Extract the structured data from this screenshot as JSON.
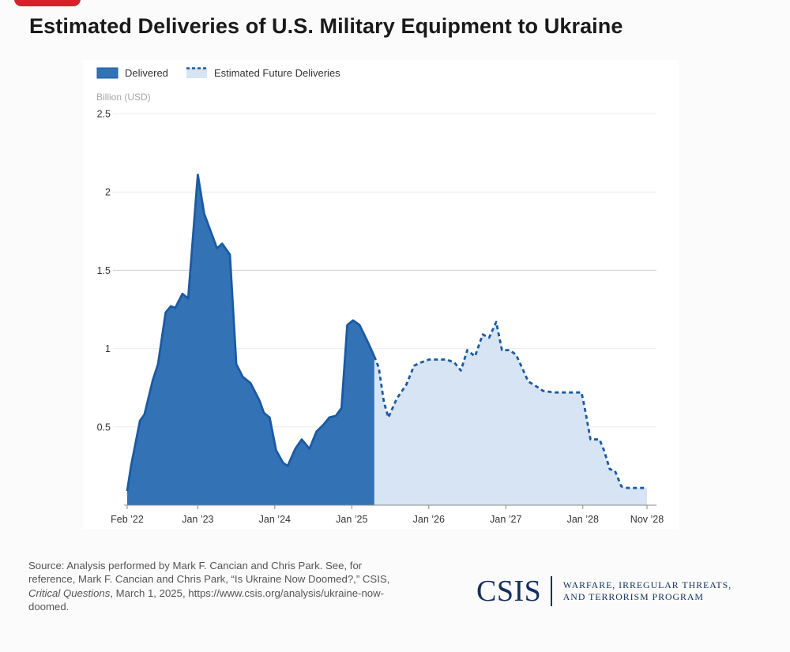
{
  "title": "Estimated Deliveries of U.S. Military Equipment to Ukraine",
  "source": {
    "line_1": "Source: Analysis performed by Mark F. Cancian and Chris Park. See, for reference, Mark F. Cancian and Chris Park, “Is Ukraine Now Doomed?,” CSIS, ",
    "publication": "Critical Questions",
    "line_2": ", March 1, 2025, https://www.csis.org/analysis/ukraine-now-doomed."
  },
  "logo": {
    "mark": "CSIS",
    "program": "WARFARE, IRREGULAR THREATS,\nAND TERRORISM PROGRAM"
  },
  "colors": {
    "delivered_fill": "#3373b5",
    "delivered_line": "#1b5aa3",
    "future_fill": "#d6e4f4",
    "future_line": "#1d5a9e"
  },
  "chart_data": {
    "type": "area",
    "ylabel": "Billion (USD)",
    "ylim": [
      0,
      2.5
    ],
    "yticks": [
      {
        "value": 0.5,
        "label": "0.5"
      },
      {
        "value": 1,
        "label": "1"
      },
      {
        "value": 1.5,
        "label": "1.5"
      },
      {
        "value": 2,
        "label": "2"
      },
      {
        "value": 2.5,
        "label": "2.5"
      }
    ],
    "x_unit": "months since Feb 2022",
    "xlim": [
      0,
      81
    ],
    "xticks": [
      {
        "x": 0,
        "label": "Feb ’22"
      },
      {
        "x": 11,
        "label": "Jan ’23"
      },
      {
        "x": 23,
        "label": "Jan ’24"
      },
      {
        "x": 35,
        "label": "Jan ’25"
      },
      {
        "x": 47,
        "label": "Jan ’26"
      },
      {
        "x": 59,
        "label": "Jan ’27"
      },
      {
        "x": 71,
        "label": "Jan ’28"
      },
      {
        "x": 81,
        "label": "Nov ’28"
      }
    ],
    "legend": {
      "position": "top-left",
      "entries": [
        {
          "name": "Delivered",
          "style": "solid-fill"
        },
        {
          "name": "Estimated Future Deliveries",
          "style": "dashed-light-fill"
        }
      ]
    },
    "series": [
      {
        "name": "Delivered",
        "points": [
          [
            0,
            0.09
          ],
          [
            0.6,
            0.25
          ],
          [
            2,
            0.54
          ],
          [
            2.7,
            0.58
          ],
          [
            4,
            0.8
          ],
          [
            4.8,
            0.9
          ],
          [
            6,
            1.23
          ],
          [
            6.8,
            1.27
          ],
          [
            7.5,
            1.26
          ],
          [
            8.6,
            1.35
          ],
          [
            9.5,
            1.32
          ],
          [
            11,
            2.11
          ],
          [
            12,
            1.86
          ],
          [
            13,
            1.75
          ],
          [
            14,
            1.64
          ],
          [
            14.8,
            1.67
          ],
          [
            16,
            1.6
          ],
          [
            17,
            0.9
          ],
          [
            18,
            0.82
          ],
          [
            19.2,
            0.78
          ],
          [
            20.6,
            0.67
          ],
          [
            21.3,
            0.59
          ],
          [
            22.2,
            0.56
          ],
          [
            23.2,
            0.35
          ],
          [
            24.3,
            0.27
          ],
          [
            25,
            0.25
          ],
          [
            26.2,
            0.36
          ],
          [
            27.2,
            0.42
          ],
          [
            28.4,
            0.36
          ],
          [
            29.5,
            0.47
          ],
          [
            30.5,
            0.51
          ],
          [
            31.5,
            0.56
          ],
          [
            32.5,
            0.57
          ],
          [
            33.4,
            0.62
          ],
          [
            34.3,
            1.15
          ],
          [
            35.2,
            1.18
          ],
          [
            36.2,
            1.15
          ],
          [
            37.4,
            1.05
          ],
          [
            38.5,
            0.95
          ]
        ]
      },
      {
        "name": "Estimated Future Deliveries",
        "points": [
          [
            38.5,
            0.95
          ],
          [
            39.2,
            0.88
          ],
          [
            40,
            0.66
          ],
          [
            40.7,
            0.56
          ],
          [
            42,
            0.68
          ],
          [
            43.5,
            0.77
          ],
          [
            44.7,
            0.89
          ],
          [
            45.7,
            0.91
          ],
          [
            47,
            0.93
          ],
          [
            48.5,
            0.93
          ],
          [
            49.8,
            0.93
          ],
          [
            51,
            0.91
          ],
          [
            52,
            0.86
          ],
          [
            53,
            0.99
          ],
          [
            54.2,
            0.95
          ],
          [
            55.4,
            1.09
          ],
          [
            56.4,
            1.07
          ],
          [
            57.5,
            1.17
          ],
          [
            58.4,
            0.99
          ],
          [
            59.6,
            0.99
          ],
          [
            60.6,
            0.96
          ],
          [
            61.5,
            0.88
          ],
          [
            62.5,
            0.79
          ],
          [
            63.7,
            0.76
          ],
          [
            64.8,
            0.73
          ],
          [
            66.5,
            0.72
          ],
          [
            68,
            0.72
          ],
          [
            69.5,
            0.72
          ],
          [
            70.8,
            0.72
          ],
          [
            71.3,
            0.62
          ],
          [
            72.2,
            0.42
          ],
          [
            73.6,
            0.42
          ],
          [
            74.3,
            0.35
          ],
          [
            75.2,
            0.23
          ],
          [
            76,
            0.22
          ],
          [
            77,
            0.12
          ],
          [
            78,
            0.11
          ],
          [
            79,
            0.11
          ],
          [
            81,
            0.11
          ]
        ]
      }
    ]
  }
}
